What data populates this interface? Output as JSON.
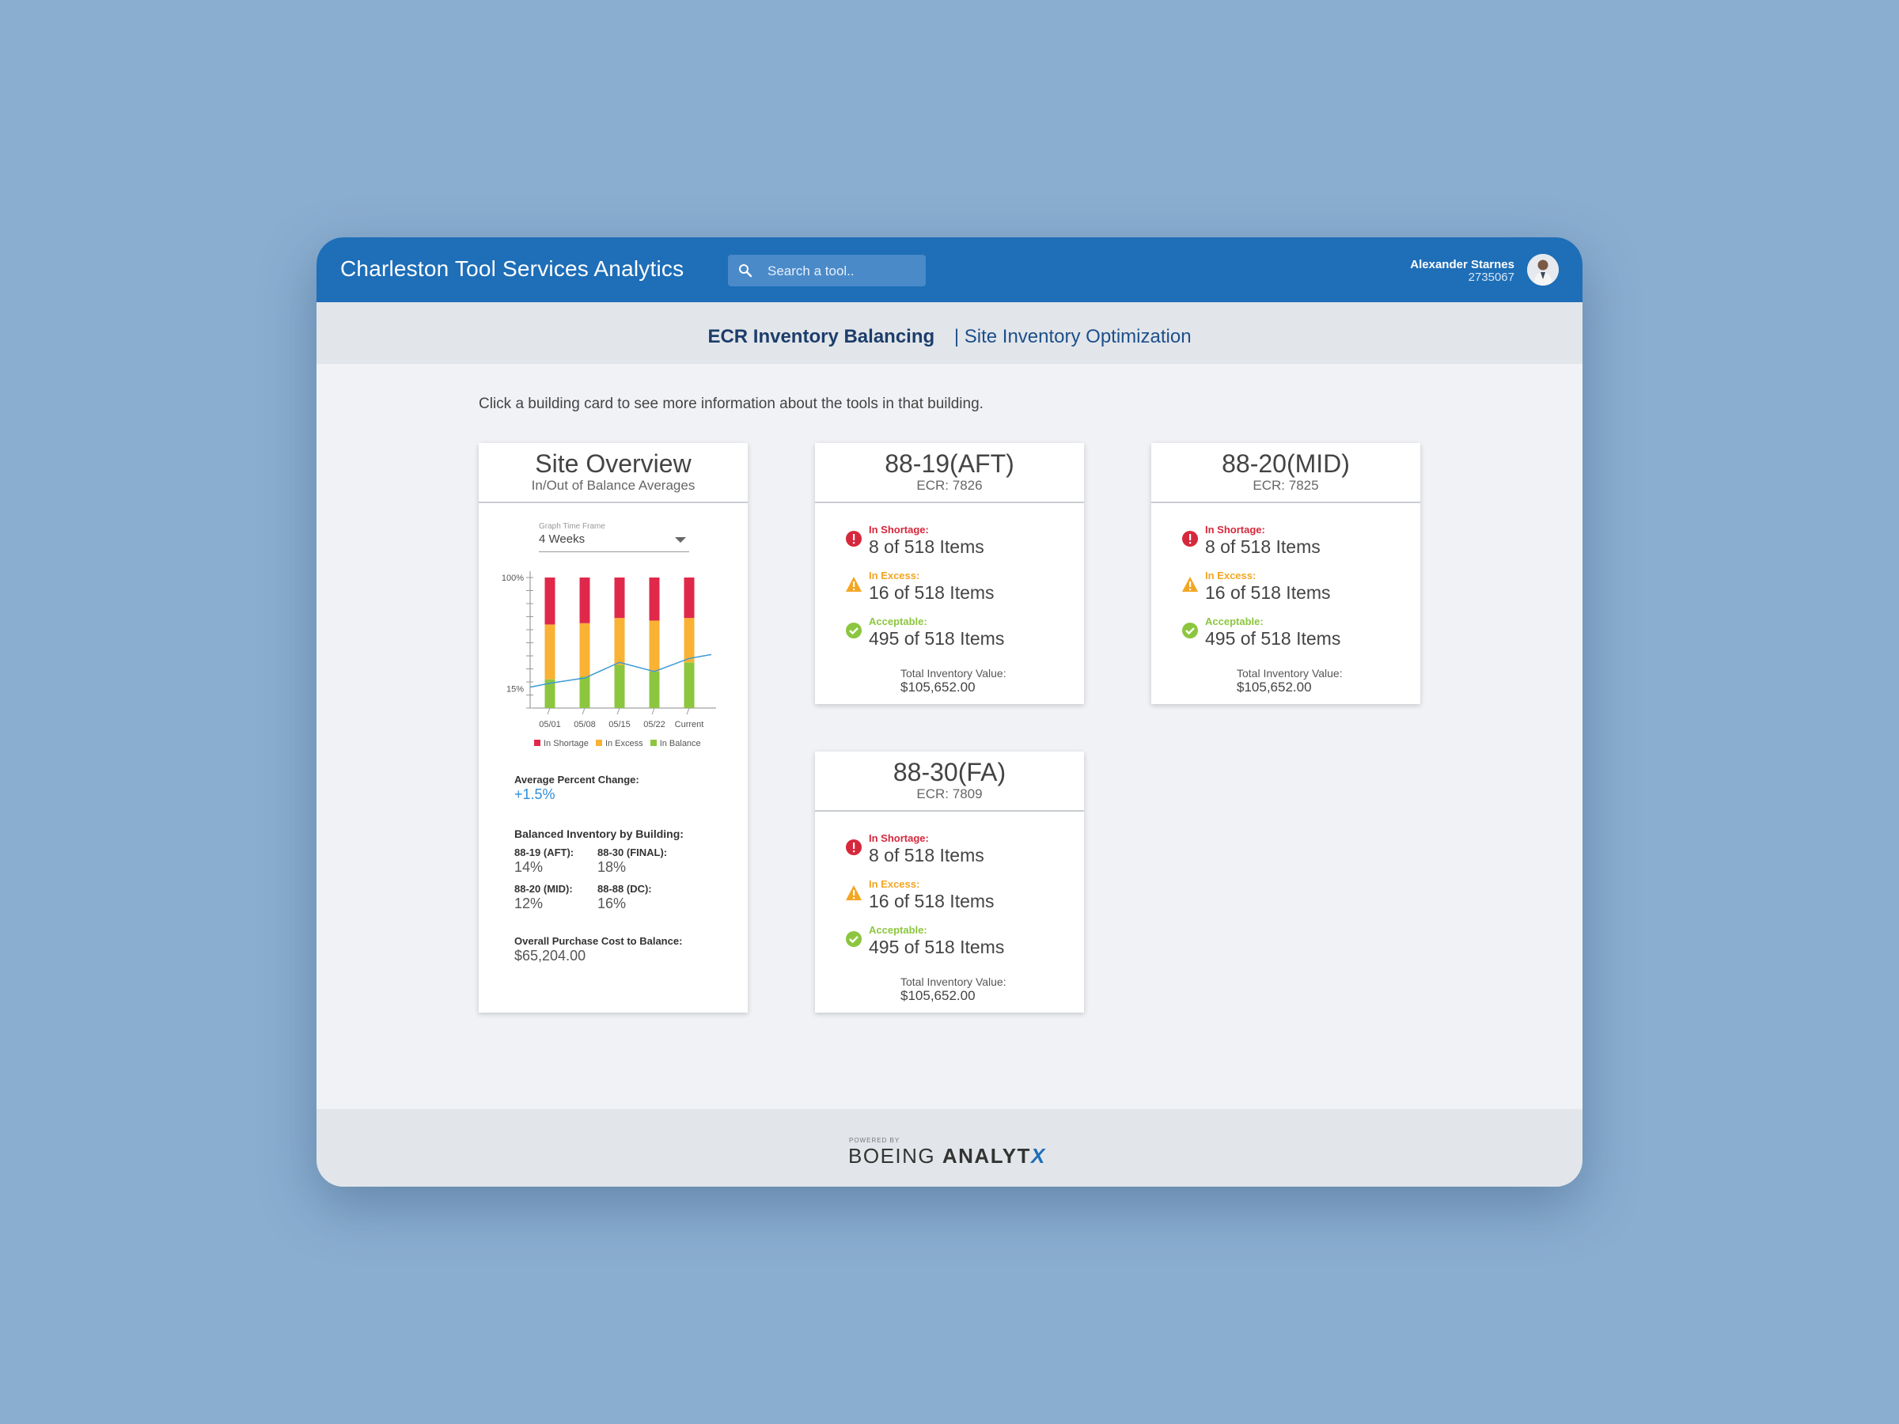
{
  "header": {
    "app_title": "Charleston Tool Services Analytics",
    "search_placeholder": "Search a tool..",
    "user_name": "Alexander Starnes",
    "user_id": "2735067"
  },
  "subnav": {
    "active": "ECR Inventory Balancing",
    "inactive": "| Site Inventory Optimization"
  },
  "instruction": "Click a building card to see more information about the tools in that building.",
  "overview": {
    "title": "Site Overview",
    "subtitle": "In/Out of Balance Averages",
    "timeframe_label": "Graph Time Frame",
    "timeframe_value": "4 Weeks",
    "avg_change_label": "Average Percent Change:",
    "avg_change_value": "+1.5%",
    "balanced_label": "Balanced Inventory by Building:",
    "buildings": [
      {
        "label": "88-19 (AFT):",
        "value": "14%"
      },
      {
        "label": "88-30 (FINAL):",
        "value": "18%"
      },
      {
        "label": "88-20 (MID):",
        "value": "12%"
      },
      {
        "label": "88-88 (DC):",
        "value": "16%"
      }
    ],
    "cost_label": "Overall Purchase Cost to Balance:",
    "cost_value": "$65,204.00"
  },
  "chart_data": {
    "type": "bar",
    "stacked": true,
    "categories": [
      "05/01",
      "05/08",
      "05/15",
      "05/22",
      "Current"
    ],
    "ytick_labels": [
      "100%",
      "15%"
    ],
    "ylim": [
      0,
      100
    ],
    "series": [
      {
        "name": "In Balance",
        "color": "#8cc63f",
        "values": [
          22,
          24,
          33,
          28,
          35
        ]
      },
      {
        "name": "In Excess",
        "color": "#f9b233",
        "values": [
          42,
          41,
          36,
          39,
          34
        ]
      },
      {
        "name": "In Shortage",
        "color": "#e0284a",
        "values": [
          36,
          35,
          31,
          33,
          31
        ]
      }
    ],
    "line": {
      "color": "#3d9ad6",
      "values": [
        19,
        23,
        35,
        28,
        38
      ]
    },
    "legend_position": "bottom"
  },
  "cards": [
    {
      "title": "88-19(AFT)",
      "ecr": "ECR: 7826",
      "shortage_label": "In Shortage:",
      "shortage_value": "8 of 518 Items",
      "excess_label": "In Excess:",
      "excess_value": "16 of 518 Items",
      "accept_label": "Acceptable:",
      "accept_value": "495 of 518 Items",
      "total_label": "Total Inventory Value:",
      "total_value": "$105,652.00"
    },
    {
      "title": "88-20(MID)",
      "ecr": "ECR: 7825",
      "shortage_label": "In Shortage:",
      "shortage_value": "8 of 518 Items",
      "excess_label": "In Excess:",
      "excess_value": "16 of 518 Items",
      "accept_label": "Acceptable:",
      "accept_value": "495 of 518 Items",
      "total_label": "Total Inventory Value:",
      "total_value": "$105,652.00"
    },
    {
      "title": "88-30(FA)",
      "ecr": "ECR: 7809",
      "shortage_label": "In Shortage:",
      "shortage_value": "8 of 518 Items",
      "excess_label": "In Excess:",
      "excess_value": "16 of 518 Items",
      "accept_label": "Acceptable:",
      "accept_value": "495 of 518 Items",
      "total_label": "Total Inventory Value:",
      "total_value": "$105,652.00"
    }
  ],
  "footer": {
    "powered_by": "POWERED BY",
    "brand_first": "BOEING",
    "brand_second": "ANALYT",
    "brand_x": "X"
  },
  "icons": {
    "search": "search-icon",
    "shortage": "alert-circle-icon",
    "excess": "warning-triangle-icon",
    "acceptable": "check-circle-icon"
  },
  "colors": {
    "header": "#1e6eb8",
    "shortage": "#d6283c",
    "excess": "#f3a623",
    "acceptable": "#8cc63f",
    "positive_change": "#2f8fd8"
  }
}
